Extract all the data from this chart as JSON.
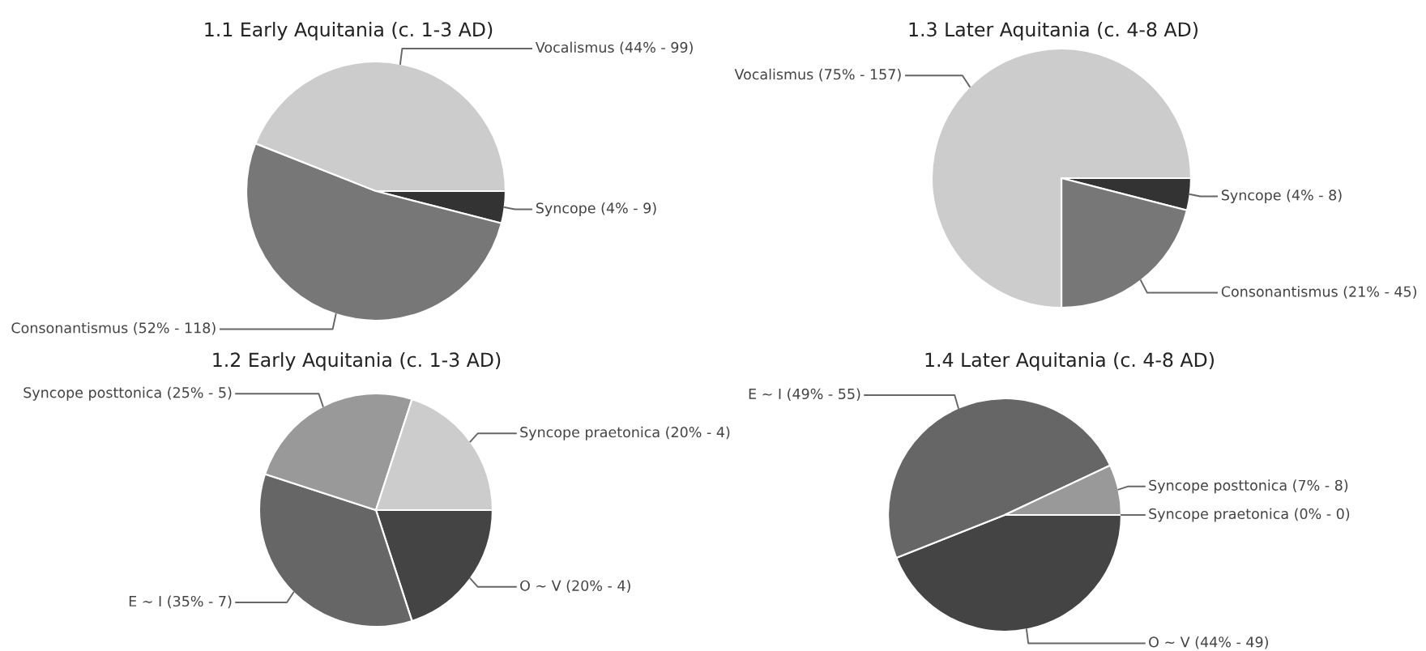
{
  "chart_data": [
    {
      "type": "pie",
      "title": "1.1 Early Aquitania (c. 1-3 AD)",
      "categories": [
        "Syncope",
        "Consonantismus",
        "Vocalismus"
      ],
      "values": [
        4,
        52,
        44
      ],
      "value_labels": [
        "(4% - 9)",
        "(52% - 118)",
        "(44% - 99)"
      ],
      "colors": [
        "#333333",
        "#777777",
        "#cccccc"
      ]
    },
    {
      "type": "pie",
      "title": "1.3 Later Aquitania (c. 4-8 AD)",
      "categories": [
        "Syncope",
        "Consonantismus",
        "Vocalismus"
      ],
      "values": [
        4,
        21,
        75
      ],
      "value_labels": [
        "(4% - 8)",
        "(21% - 45)",
        "(75% - 157)"
      ],
      "colors": [
        "#333333",
        "#777777",
        "#cccccc"
      ]
    },
    {
      "type": "pie",
      "title": "1.2 Early Aquitania (c. 1-3 AD)",
      "categories": [
        "O ~ V",
        "E ~ I",
        "Syncope posttonica",
        "Syncope praetonica"
      ],
      "values": [
        20,
        35,
        25,
        20
      ],
      "value_labels": [
        "(20% - 4)",
        "(35% - 7)",
        "(25% - 5)",
        "(20% - 4)"
      ],
      "colors": [
        "#444444",
        "#666666",
        "#999999",
        "#cccccc"
      ]
    },
    {
      "type": "pie",
      "title": "1.4 Later Aquitania (c. 4-8 AD)",
      "categories": [
        "Syncope praetonica",
        "O ~ V",
        "E ~ I",
        "Syncope posttonica"
      ],
      "values": [
        0,
        44,
        49,
        7
      ],
      "value_labels": [
        "(0% - 0)",
        "(44% - 49)",
        "(49% - 55)",
        "(7% - 8)"
      ],
      "colors": [
        "#cccccc",
        "#444444",
        "#666666",
        "#999999"
      ]
    }
  ]
}
